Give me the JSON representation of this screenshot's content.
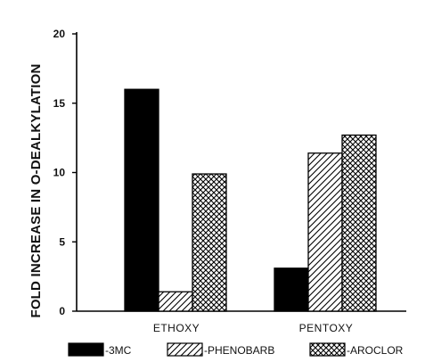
{
  "chart_data": {
    "type": "bar",
    "categories": [
      "ETHOXY",
      "PENTOXY"
    ],
    "series": [
      {
        "name": "-3MC",
        "values": [
          16.0,
          3.1
        ],
        "pattern": "solid",
        "color": "#000000"
      },
      {
        "name": "-PHENOBARB",
        "values": [
          1.4,
          11.4
        ],
        "pattern": "diagonal-hatch",
        "color": "#000000"
      },
      {
        "name": "-AROCLOR",
        "values": [
          9.9,
          12.7
        ],
        "pattern": "crosshatch",
        "color": "#000000"
      }
    ],
    "ylabel": "FOLD INCREASE IN O-DEALKYLATION",
    "xlabel": "",
    "ylim": [
      0,
      20
    ],
    "yticks": [
      0,
      5,
      10,
      15,
      20
    ],
    "grid": false,
    "legend": "bottom"
  }
}
